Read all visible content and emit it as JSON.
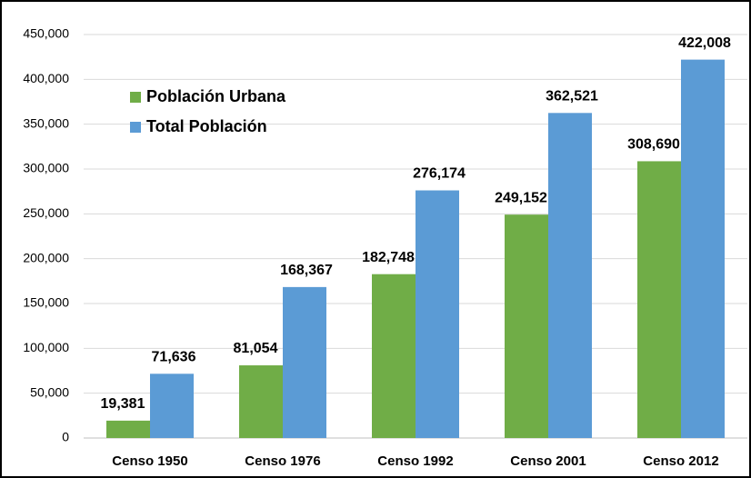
{
  "chart_data": {
    "type": "bar",
    "categories": [
      "Censo 1950",
      "Censo 1976",
      "Censo 1992",
      "Censo 2001",
      "Censo 2012"
    ],
    "series": [
      {
        "name": "Población Urbana",
        "color": "#70ad47",
        "values": [
          19381,
          81054,
          182748,
          249152,
          308690
        ],
        "value_labels": [
          "19,381",
          "81,054",
          "182,748",
          "249,152",
          "308,690"
        ]
      },
      {
        "name": "Total Población",
        "color": "#5b9bd5",
        "values": [
          71636,
          168367,
          276174,
          362521,
          422008
        ],
        "value_labels": [
          "71,636",
          "168,367",
          "276,174",
          "362,521",
          "422,008"
        ]
      }
    ],
    "ylim": [
      0,
      450000
    ],
    "yticks": [
      0,
      {
        "value": 50000,
        "label": "50,000"
      },
      {
        "value": 100000,
        "label": "100,000"
      },
      {
        "value": 150000,
        "label": "150,000"
      },
      {
        "value": 200000,
        "label": "200,000"
      },
      {
        "value": 250000,
        "label": "250,000"
      },
      {
        "value": 300000,
        "label": "300,000"
      },
      {
        "value": 350000,
        "label": "350,000"
      },
      {
        "value": 400000,
        "label": "400,000"
      },
      {
        "value": 450000,
        "label": "450,000"
      }
    ],
    "grid": true,
    "legend": "upper-left"
  }
}
